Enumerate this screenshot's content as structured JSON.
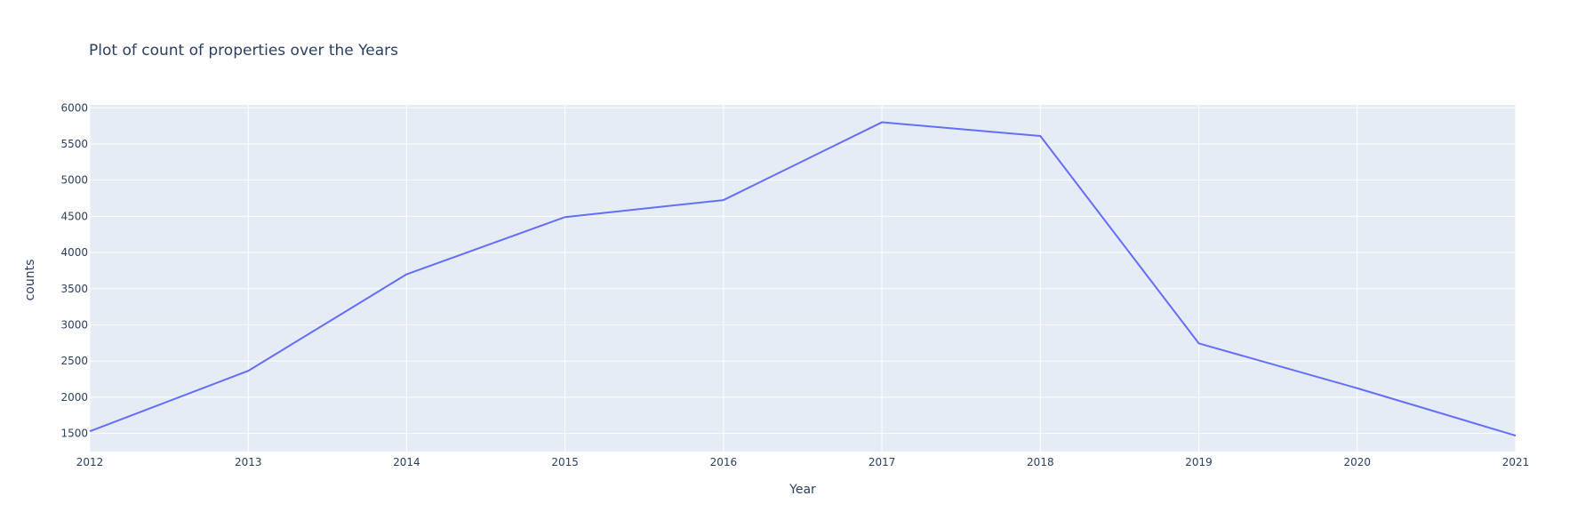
{
  "chart_data": {
    "type": "line",
    "title": "Plot of count of properties over the Years",
    "xlabel": "Year",
    "ylabel": "counts",
    "x": [
      2012,
      2013,
      2014,
      2015,
      2016,
      2017,
      2018,
      2019,
      2020,
      2021
    ],
    "series": [
      {
        "values": [
          1530,
          2365,
          3700,
          4490,
          4725,
          5800,
          5610,
          2745,
          2125,
          1470
        ]
      }
    ],
    "xlim": [
      2012,
      2021
    ],
    "ylim": [
      1250,
      6040
    ],
    "xticks": [
      2012,
      2013,
      2014,
      2015,
      2016,
      2017,
      2018,
      2019,
      2020,
      2021
    ],
    "yticks": [
      1500,
      2000,
      2500,
      3000,
      3500,
      4000,
      4500,
      5000,
      5500,
      6000
    ],
    "grid": true,
    "legend": "none",
    "colors": {
      "line": "#636efa",
      "plot_background": "#e5ecf6",
      "grid": "#ffffff",
      "text": "#2a3f5f"
    }
  }
}
